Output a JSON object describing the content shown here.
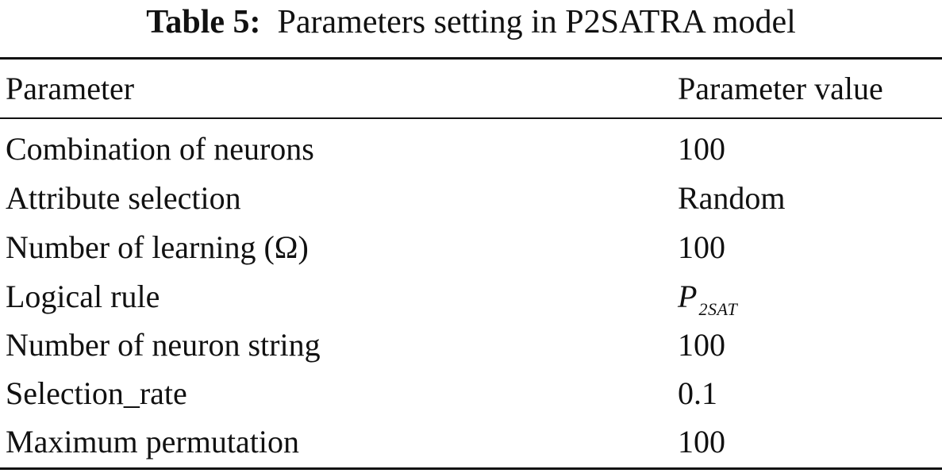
{
  "table": {
    "caption_label": "Table 5:",
    "caption_text": "Parameters setting in P2SATRA model",
    "headers": [
      "Parameter",
      "Parameter value"
    ],
    "rows": [
      {
        "parameter": "Combination of neurons",
        "value": "100"
      },
      {
        "parameter": "Attribute selection",
        "value": "Random"
      },
      {
        "parameter": "Number of learning (Ω)",
        "value": "100"
      },
      {
        "parameter": "Logical rule",
        "value": "",
        "value_math": {
          "base": "P",
          "subscript": "2SAT"
        }
      },
      {
        "parameter": "Number of neuron string",
        "value": "100"
      },
      {
        "parameter": "Selection_rate",
        "value": "0.1"
      },
      {
        "parameter": "Maximum permutation",
        "value": "100"
      }
    ]
  }
}
